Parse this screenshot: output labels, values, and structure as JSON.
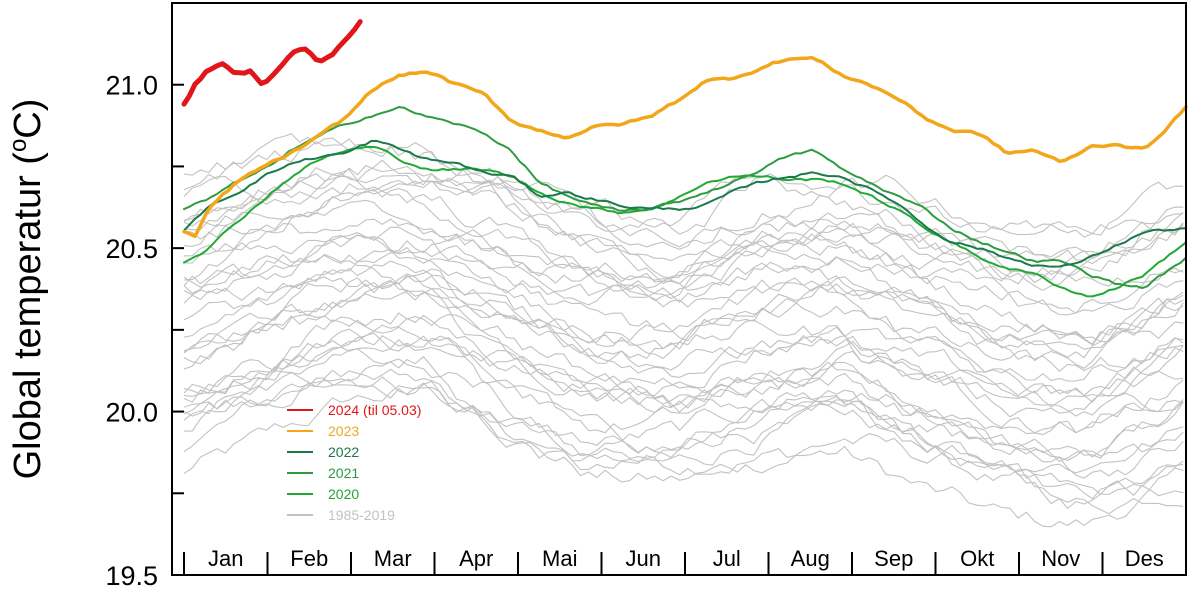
{
  "chart_data": {
    "type": "line",
    "ylabel": "Global temperatur (",
    "ylabel_sup": "o",
    "ylabel_unit": "C)",
    "ylim": [
      19.5,
      21.25
    ],
    "yticks": [
      19.5,
      19.75,
      20.0,
      20.25,
      20.5,
      20.75,
      21.0
    ],
    "ytick_labels": [
      "19.5",
      "",
      "20.0",
      "",
      "20.5",
      "",
      "21.0"
    ],
    "months": [
      "Jan",
      "Feb",
      "Mar",
      "Apr",
      "Mai",
      "Jun",
      "Jul",
      "Aug",
      "Sep",
      "Okt",
      "Nov",
      "Des"
    ],
    "grid": false,
    "legend_position": "lower-left",
    "series": [
      {
        "name": "2024 (til 05.03)",
        "color": "#e0161b",
        "days": [
          1,
          5,
          10,
          15,
          20,
          25,
          30,
          35,
          40,
          45,
          50,
          55,
          60,
          65
        ],
        "values": [
          20.94,
          21.0,
          21.05,
          21.06,
          21.03,
          21.04,
          21.0,
          21.05,
          21.1,
          21.11,
          21.07,
          21.09,
          21.14,
          21.19
        ]
      },
      {
        "name": "2023",
        "color": "#f2a71b",
        "days": [
          1,
          5,
          10,
          20,
          30,
          40,
          50,
          60,
          70,
          80,
          90,
          100,
          110,
          120,
          130,
          140,
          150,
          160,
          170,
          180,
          190,
          200,
          210,
          220,
          230,
          240,
          250,
          260,
          270,
          280,
          290,
          300,
          310,
          320,
          330,
          340,
          350,
          365
        ],
        "values": [
          20.55,
          20.53,
          20.62,
          20.7,
          20.75,
          20.79,
          20.84,
          20.9,
          20.99,
          21.03,
          21.04,
          21.0,
          20.97,
          20.89,
          20.86,
          20.84,
          20.87,
          20.88,
          20.9,
          20.95,
          21.01,
          21.02,
          21.05,
          21.08,
          21.08,
          21.03,
          21.0,
          20.96,
          20.9,
          20.86,
          20.85,
          20.79,
          20.8,
          20.76,
          20.81,
          20.82,
          20.8,
          20.93
        ]
      },
      {
        "name": "2022",
        "color": "#1a7a4a",
        "days": [
          1,
          10,
          20,
          30,
          40,
          50,
          60,
          70,
          80,
          90,
          100,
          110,
          120,
          130,
          140,
          150,
          160,
          170,
          180,
          190,
          200,
          210,
          220,
          230,
          240,
          250,
          260,
          270,
          280,
          290,
          300,
          310,
          320,
          330,
          340,
          350,
          365
        ],
        "values": [
          20.55,
          20.63,
          20.67,
          20.72,
          20.76,
          20.78,
          20.79,
          20.83,
          20.8,
          20.77,
          20.76,
          20.73,
          20.72,
          20.66,
          20.67,
          20.65,
          20.63,
          20.62,
          20.62,
          20.63,
          20.67,
          20.7,
          20.72,
          20.73,
          20.72,
          20.68,
          20.64,
          20.57,
          20.52,
          20.5,
          20.47,
          20.45,
          20.44,
          20.47,
          20.51,
          20.55,
          20.56
        ]
      },
      {
        "name": "2021",
        "color": "#2d9b3e",
        "days": [
          1,
          10,
          20,
          30,
          40,
          50,
          60,
          70,
          80,
          90,
          100,
          110,
          120,
          130,
          140,
          150,
          160,
          170,
          180,
          190,
          200,
          210,
          220,
          230,
          240,
          250,
          260,
          270,
          280,
          290,
          300,
          310,
          320,
          330,
          340,
          350,
          365
        ],
        "values": [
          20.62,
          20.65,
          20.7,
          20.74,
          20.8,
          20.84,
          20.88,
          20.91,
          20.93,
          20.9,
          20.88,
          20.85,
          20.8,
          20.7,
          20.66,
          20.63,
          20.61,
          20.62,
          20.64,
          20.67,
          20.7,
          20.74,
          20.78,
          20.8,
          20.74,
          20.7,
          20.66,
          20.62,
          20.56,
          20.52,
          20.49,
          20.46,
          20.46,
          20.42,
          20.39,
          20.38,
          20.47
        ]
      },
      {
        "name": "2020",
        "color": "#22a835",
        "days": [
          1,
          10,
          20,
          30,
          40,
          50,
          60,
          70,
          80,
          90,
          100,
          110,
          120,
          130,
          140,
          150,
          160,
          170,
          180,
          190,
          200,
          210,
          220,
          230,
          240,
          250,
          260,
          270,
          280,
          290,
          300,
          310,
          320,
          330,
          340,
          350,
          365
        ],
        "values": [
          20.46,
          20.5,
          20.58,
          20.65,
          20.72,
          20.77,
          20.8,
          20.81,
          20.77,
          20.74,
          20.74,
          20.74,
          20.72,
          20.67,
          20.64,
          20.62,
          20.61,
          20.62,
          20.65,
          20.7,
          20.72,
          20.72,
          20.71,
          20.71,
          20.7,
          20.66,
          20.62,
          20.56,
          20.52,
          20.47,
          20.44,
          20.42,
          20.38,
          20.35,
          20.38,
          20.42,
          20.52
        ]
      },
      {
        "name": "1985-2019",
        "color": "#c2c2c2",
        "days": [
          1,
          30,
          60,
          90,
          120,
          150,
          180,
          210,
          240,
          270,
          300,
          330,
          365
        ],
        "band_low": [
          19.85,
          19.95,
          20.05,
          20.05,
          19.9,
          19.8,
          19.8,
          19.85,
          19.9,
          19.8,
          19.7,
          19.65,
          19.75
        ],
        "band_high": [
          20.7,
          20.75,
          20.8,
          20.8,
          20.75,
          20.65,
          20.6,
          20.7,
          20.7,
          20.62,
          20.55,
          20.55,
          20.7
        ],
        "line_count": 35
      }
    ]
  }
}
